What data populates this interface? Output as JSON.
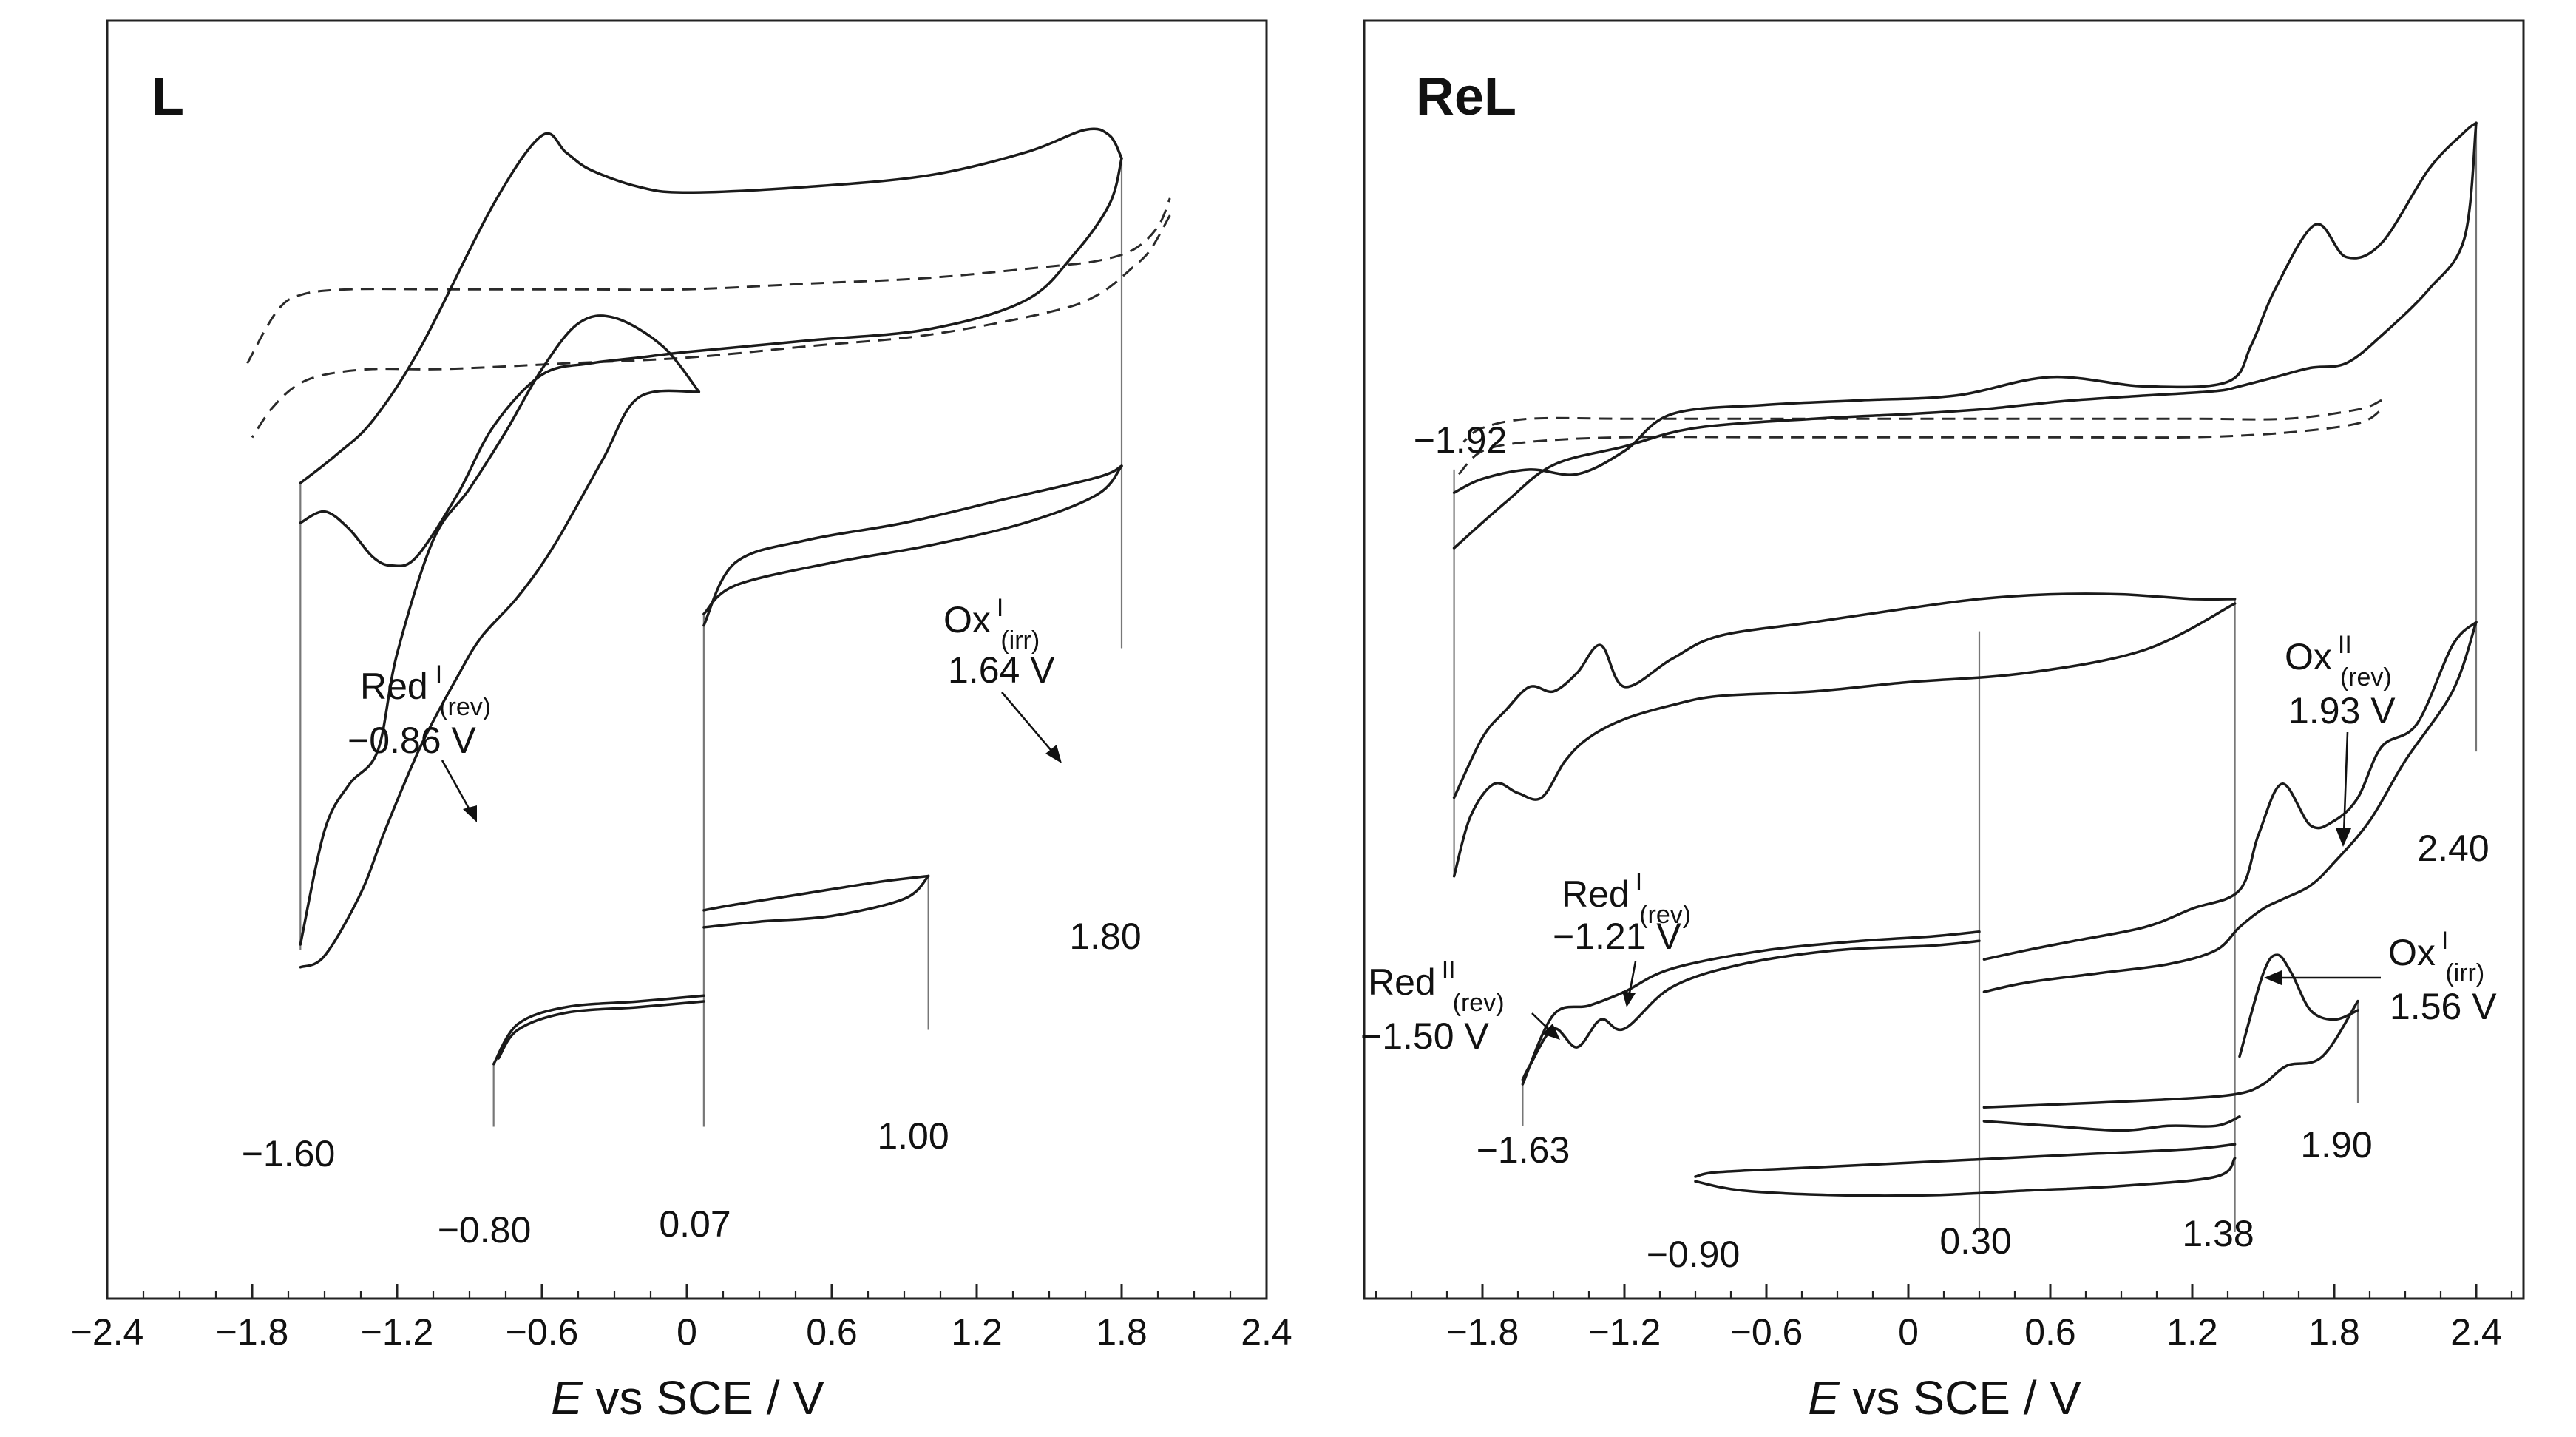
{
  "chart_data": [
    {
      "type": "line",
      "title": "L",
      "xlabel_italic": "E",
      "xlabel_rest": " vs SCE / V",
      "xlim": [
        -2.4,
        2.4
      ],
      "xticks": [
        "−2.4",
        "−1.8",
        "−1.2",
        "−0.6",
        "0",
        "0.6",
        "1.2",
        "1.8",
        "2.4"
      ],
      "potential_labels": [
        "−1.60",
        "1.80",
        "−0.80",
        "0.07",
        "1.00"
      ],
      "annotations": [
        {
          "main": "Red",
          "sup": "I",
          "sub": "(rev)",
          "value": "−0.86 V"
        },
        {
          "main": "Ox",
          "sup": "I",
          "sub": "(irr)",
          "value": "1.64 V"
        }
      ],
      "series": [
        {
          "style": "dashed",
          "x": [
            -1.82,
            -1.7,
            -1.6,
            -1.4,
            -1.0,
            -0.5,
            0.0,
            0.5,
            1.0,
            1.5,
            1.7,
            1.85,
            1.95,
            2.0
          ],
          "y": [
            6.4,
            7.3,
            7.6,
            7.7,
            7.7,
            7.7,
            7.7,
            7.8,
            7.9,
            8.1,
            8.2,
            8.4,
            8.8,
            9.3
          ]
        },
        {
          "style": "dashed",
          "x": [
            2.0,
            1.92,
            1.85,
            1.7,
            1.5,
            1.0,
            0.5,
            0.0,
            -0.5,
            -1.0,
            -1.3,
            -1.5,
            -1.62,
            -1.72,
            -1.8
          ],
          "y": [
            9.0,
            8.4,
            8.1,
            7.6,
            7.3,
            6.9,
            6.7,
            6.5,
            6.4,
            6.3,
            6.3,
            6.2,
            6.0,
            5.6,
            5.1
          ]
        },
        {
          "style": "solid",
          "x": [
            -1.6,
            -1.5,
            -1.4,
            -1.3,
            -1.22,
            -1.12,
            -0.95,
            -0.8,
            -0.6,
            -0.4,
            -0.2,
            0.0,
            0.5,
            1.0,
            1.4,
            1.6,
            1.75,
            1.8
          ],
          "y": [
            3.6,
            3.8,
            3.5,
            3.0,
            2.85,
            3.0,
            4.1,
            5.3,
            6.2,
            6.4,
            6.5,
            6.6,
            6.8,
            7.0,
            7.5,
            8.3,
            9.2,
            10.0
          ]
        },
        {
          "style": "solid",
          "x": [
            1.8,
            1.75,
            1.65,
            1.4,
            1.0,
            0.5,
            0.0,
            -0.2,
            -0.4,
            -0.5,
            -0.6,
            -0.8,
            -1.1,
            -1.3,
            -1.45,
            -1.6
          ],
          "y": [
            10.0,
            10.4,
            10.5,
            10.1,
            9.7,
            9.5,
            9.4,
            9.5,
            9.8,
            10.1,
            10.4,
            9.2,
            6.7,
            5.4,
            4.8,
            4.3
          ]
        },
        {
          "style": "solid",
          "x": [
            -1.6,
            -1.5,
            -1.35,
            -1.25,
            -1.1,
            -0.95,
            -0.85,
            -0.7,
            -0.55,
            -0.35,
            -0.2,
            0.05
          ],
          "y": [
            -4.2,
            -4.0,
            -2.9,
            -1.8,
            -0.3,
            0.9,
            1.6,
            2.3,
            3.2,
            4.7,
            5.8,
            5.9
          ]
        },
        {
          "style": "solid",
          "x": [
            0.05,
            -0.1,
            -0.3,
            -0.45,
            -0.6,
            -0.75,
            -0.9,
            -1.05,
            -1.2,
            -1.28,
            -1.4,
            -1.5,
            -1.6
          ],
          "y": [
            5.9,
            6.7,
            7.2,
            7.1,
            6.3,
            5.2,
            4.2,
            3.3,
            1.3,
            -0.4,
            -1.0,
            -1.8,
            -3.8
          ]
        },
        {
          "style": "solid",
          "x": [
            0.07,
            0.2,
            0.6,
            1.0,
            1.4,
            1.7,
            1.8
          ],
          "y": [
            2.0,
            2.5,
            2.9,
            3.2,
            3.6,
            4.1,
            4.6
          ]
        },
        {
          "style": "solid",
          "x": [
            1.8,
            1.7,
            1.3,
            0.9,
            0.5,
            0.2,
            0.07
          ],
          "y": [
            4.6,
            4.4,
            4.0,
            3.6,
            3.3,
            2.9,
            1.8
          ]
        },
        {
          "style": "solid",
          "x": [
            -0.8,
            -0.7,
            -0.5,
            -0.2,
            0.07
          ],
          "y": [
            -5.9,
            -5.2,
            -4.9,
            -4.8,
            -4.7
          ]
        },
        {
          "style": "solid",
          "x": [
            0.07,
            -0.2,
            -0.5,
            -0.7,
            -0.78
          ],
          "y": [
            -4.8,
            -4.9,
            -5.0,
            -5.3,
            -5.8
          ]
        },
        {
          "style": "solid",
          "x": [
            0.07,
            0.3,
            0.6,
            0.9,
            1.0
          ],
          "y": [
            -3.5,
            -3.4,
            -3.3,
            -3.0,
            -2.6
          ]
        },
        {
          "style": "solid",
          "x": [
            1.0,
            0.8,
            0.5,
            0.2,
            0.07
          ],
          "y": [
            -2.6,
            -2.7,
            -2.9,
            -3.1,
            -3.2
          ]
        }
      ]
    },
    {
      "type": "line",
      "title": "ReL",
      "xlabel_italic": "E",
      "xlabel_rest": " vs SCE / V",
      "xlim": [
        -2.3,
        2.6
      ],
      "xticks": [
        "−1.8",
        "−1.2",
        "−0.6",
        "0",
        "0.6",
        "1.2",
        "1.8",
        "2.4"
      ],
      "potential_labels": [
        "−1.92",
        "2.40",
        "−1.63",
        "1.90",
        "−0.90",
        "0.30",
        "1.38"
      ],
      "annotations": [
        {
          "main": "Ox",
          "sup": "II",
          "sub": "(rev)",
          "value": "1.93 V"
        },
        {
          "main": "Red",
          "sup": "I",
          "sub": "(rev)",
          "value": "−1.21 V"
        },
        {
          "main": "Red",
          "sup": "II",
          "sub": "(rev)",
          "value": "−1.50 V"
        },
        {
          "main": "Ox",
          "sup": "I",
          "sub": "(irr)",
          "value": "1.56 V"
        }
      ],
      "series": [
        {
          "style": "dashed",
          "x": [
            -1.9,
            -1.8,
            -1.6,
            -1.2,
            -0.6,
            0.0,
            0.6,
            1.2,
            1.6,
            1.9,
            2.0
          ],
          "y": [
            7.2,
            7.7,
            7.9,
            8.0,
            8.0,
            8.0,
            8.0,
            8.0,
            8.1,
            8.3,
            8.6
          ]
        },
        {
          "style": "dashed",
          "x": [
            2.0,
            1.9,
            1.6,
            1.2,
            0.6,
            0.0,
            -0.6,
            -1.2,
            -1.6,
            -1.8,
            -1.88
          ],
          "y": [
            8.8,
            8.6,
            8.4,
            8.4,
            8.4,
            8.4,
            8.4,
            8.4,
            8.4,
            8.2,
            7.9
          ]
        },
        {
          "style": "solid",
          "x": [
            -1.92,
            -1.7,
            -1.5,
            -1.2,
            -0.9,
            -0.4,
            0.0,
            0.3,
            0.5,
            0.7,
            1.0,
            1.3,
            1.4,
            1.55,
            1.7,
            1.85,
            2.0,
            2.2,
            2.35,
            2.4
          ],
          "y": [
            5.6,
            6.6,
            7.4,
            7.8,
            8.2,
            8.4,
            8.5,
            8.6,
            8.7,
            8.8,
            8.9,
            9.0,
            9.1,
            9.3,
            9.5,
            9.6,
            10.2,
            11.2,
            12.3,
            14.8
          ]
        },
        {
          "style": "solid",
          "x": [
            2.4,
            2.35,
            2.2,
            2.0,
            1.85,
            1.72,
            1.55,
            1.45,
            1.35,
            1.0,
            0.6,
            0.2,
            -0.2,
            -0.6,
            -1.0,
            -1.2,
            -1.4,
            -1.6,
            -1.8,
            -1.92
          ],
          "y": [
            14.8,
            14.6,
            13.8,
            12.2,
            11.9,
            12.6,
            11.2,
            10.0,
            9.2,
            9.1,
            9.3,
            8.9,
            8.8,
            8.7,
            8.5,
            7.7,
            7.2,
            7.3,
            7.1,
            6.8
          ]
        },
        {
          "style": "solid",
          "x": [
            -1.92,
            -1.85,
            -1.75,
            -1.65,
            -1.55,
            -1.45,
            -1.35,
            -1.2,
            -1.0,
            -0.8,
            -0.4,
            0.0,
            0.5,
            1.0,
            1.38
          ],
          "y": [
            -1.5,
            -0.2,
            0.5,
            0.3,
            0.2,
            1.0,
            1.5,
            1.9,
            2.2,
            2.4,
            2.5,
            2.7,
            2.9,
            3.4,
            4.4
          ]
        },
        {
          "style": "solid",
          "x": [
            1.38,
            1.2,
            0.9,
            0.6,
            0.3,
            0.0,
            -0.4,
            -0.8,
            -1.0,
            -1.2,
            -1.3,
            -1.4,
            -1.5,
            -1.6,
            -1.7,
            -1.8,
            -1.92
          ],
          "y": [
            4.5,
            4.5,
            4.6,
            4.6,
            4.5,
            4.3,
            4.0,
            3.7,
            3.2,
            2.6,
            3.5,
            2.9,
            2.5,
            2.6,
            2.1,
            1.5,
            0.2
          ]
        },
        {
          "style": "solid",
          "x": [
            0.32,
            0.5,
            0.8,
            1.1,
            1.3,
            1.4,
            1.5,
            1.58,
            1.7,
            1.8,
            1.95,
            2.1,
            2.3,
            2.4
          ],
          "y": [
            -4.0,
            -3.8,
            -3.6,
            -3.4,
            -3.1,
            -2.6,
            -2.2,
            -2.0,
            -1.7,
            -1.2,
            -0.3,
            1.0,
            2.5,
            4.0
          ]
        },
        {
          "style": "solid",
          "x": [
            2.4,
            2.3,
            2.15,
            2.0,
            1.9,
            1.8,
            1.7,
            1.58,
            1.48,
            1.4,
            1.2,
            1.0,
            0.7,
            0.5,
            0.32
          ],
          "y": [
            4.0,
            3.5,
            1.8,
            1.3,
            0.2,
            -0.3,
            -0.4,
            0.5,
            -0.6,
            -1.8,
            -2.2,
            -2.6,
            -2.9,
            -3.1,
            -3.3
          ]
        },
        {
          "style": "solid",
          "x": [
            -1.63,
            -1.5,
            -1.35,
            -1.2,
            -1.0,
            -0.6,
            -0.2,
            0.1,
            0.3
          ],
          "y": [
            -6.0,
            -4.5,
            -4.3,
            -4.0,
            -3.5,
            -3.1,
            -2.9,
            -2.8,
            -2.7
          ]
        },
        {
          "style": "solid",
          "x": [
            0.3,
            0.1,
            -0.3,
            -0.7,
            -1.0,
            -1.2,
            -1.3,
            -1.4,
            -1.5,
            -1.6,
            -1.63
          ],
          "y": [
            -2.9,
            -3.0,
            -3.1,
            -3.4,
            -3.9,
            -4.8,
            -4.6,
            -5.2,
            -4.8,
            -5.6,
            -5.9
          ]
        },
        {
          "style": "solid",
          "x": [
            1.38,
            1.2,
            0.8,
            0.4,
            0.0,
            -0.4,
            -0.8,
            -0.9
          ],
          "y": [
            -7.3,
            -7.4,
            -7.5,
            -7.6,
            -7.7,
            -7.8,
            -7.9,
            -8.0
          ]
        },
        {
          "style": "solid",
          "x": [
            -0.9,
            -0.7,
            -0.3,
            0.1,
            0.5,
            0.9,
            1.3,
            1.38
          ],
          "y": [
            -8.1,
            -8.3,
            -8.4,
            -8.4,
            -8.3,
            -8.2,
            -8.0,
            -7.6
          ]
        },
        {
          "style": "solid",
          "x": [
            1.4,
            1.5,
            1.56,
            1.62,
            1.7,
            1.8,
            1.9
          ],
          "y": [
            -5.4,
            -3.6,
            -3.2,
            -3.6,
            -4.4,
            -4.6,
            -4.4
          ]
        },
        {
          "style": "solid",
          "x": [
            1.9,
            1.75,
            1.6,
            1.5,
            1.4,
            1.2,
            0.8,
            0.32
          ],
          "y": [
            -4.2,
            -5.4,
            -5.6,
            -6.0,
            -6.2,
            -6.3,
            -6.4,
            -6.5
          ]
        },
        {
          "style": "solid",
          "x": [
            0.32,
            0.6,
            0.9,
            1.1,
            1.3,
            1.4
          ],
          "y": [
            -6.8,
            -6.9,
            -7.0,
            -6.9,
            -6.9,
            -6.7
          ]
        }
      ]
    }
  ]
}
